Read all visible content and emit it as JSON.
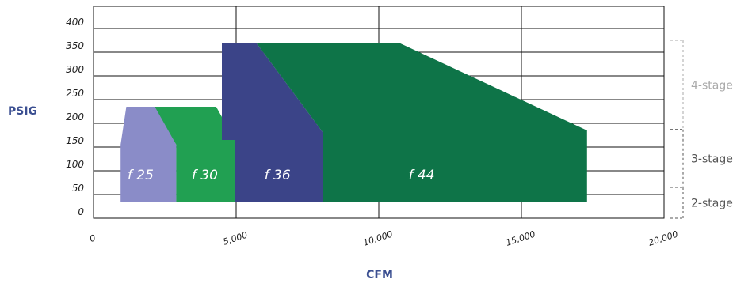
{
  "chart_data": {
    "type": "area",
    "xlabel": "CFM",
    "ylabel": "PSIG",
    "xlim": [
      0,
      20000
    ],
    "ylim": [
      0,
      400
    ],
    "x_ticks": [
      {
        "value": 0,
        "label": "0"
      },
      {
        "value": 5000,
        "label": "5,000"
      },
      {
        "value": 10000,
        "label": "10,000"
      },
      {
        "value": 15000,
        "label": "15,000"
      },
      {
        "value": 20000,
        "label": "20,000"
      }
    ],
    "y_ticks": [
      {
        "value": 0,
        "label": "0"
      },
      {
        "value": 50,
        "label": "50"
      },
      {
        "value": 100,
        "label": "100"
      },
      {
        "value": 150,
        "label": "150"
      },
      {
        "value": 200,
        "label": "200"
      },
      {
        "value": 250,
        "label": "250"
      },
      {
        "value": 300,
        "label": "300"
      },
      {
        "value": 350,
        "label": "350"
      },
      {
        "value": 400,
        "label": "400"
      }
    ],
    "grid": true,
    "series": [
      {
        "name": "f 25",
        "color": "#8a8cc8",
        "points": [
          [
            950,
            35
          ],
          [
            950,
            155
          ],
          [
            1150,
            235
          ],
          [
            2200,
            235
          ],
          [
            2900,
            155
          ],
          [
            2900,
            35
          ]
        ]
      },
      {
        "name": "f 30",
        "color": "#21a052",
        "points": [
          [
            2900,
            35
          ],
          [
            2900,
            155
          ],
          [
            2150,
            235
          ],
          [
            4300,
            235
          ],
          [
            4950,
            165
          ],
          [
            4950,
            35
          ]
        ]
      },
      {
        "name": "f 36",
        "color": "#3b4488",
        "points": [
          [
            4950,
            35
          ],
          [
            4950,
            165
          ],
          [
            4500,
            165
          ],
          [
            4500,
            370
          ],
          [
            5700,
            370
          ],
          [
            8050,
            180
          ],
          [
            8050,
            35
          ]
        ]
      },
      {
        "name": "f 44",
        "color": "#0e7448",
        "points": [
          [
            8050,
            35
          ],
          [
            8050,
            180
          ],
          [
            5700,
            370
          ],
          [
            10700,
            370
          ],
          [
            17300,
            185
          ],
          [
            17300,
            35
          ]
        ]
      }
    ],
    "stages": [
      {
        "label": "4-stage",
        "ymin": 187,
        "ymax": 375,
        "color": "#aaaaaa"
      },
      {
        "label": "3-stage",
        "ymin": 65,
        "ymax": 187,
        "color": "#555555"
      },
      {
        "label": "2-stage",
        "ymin": 0,
        "ymax": 65,
        "color": "#555555"
      }
    ]
  }
}
